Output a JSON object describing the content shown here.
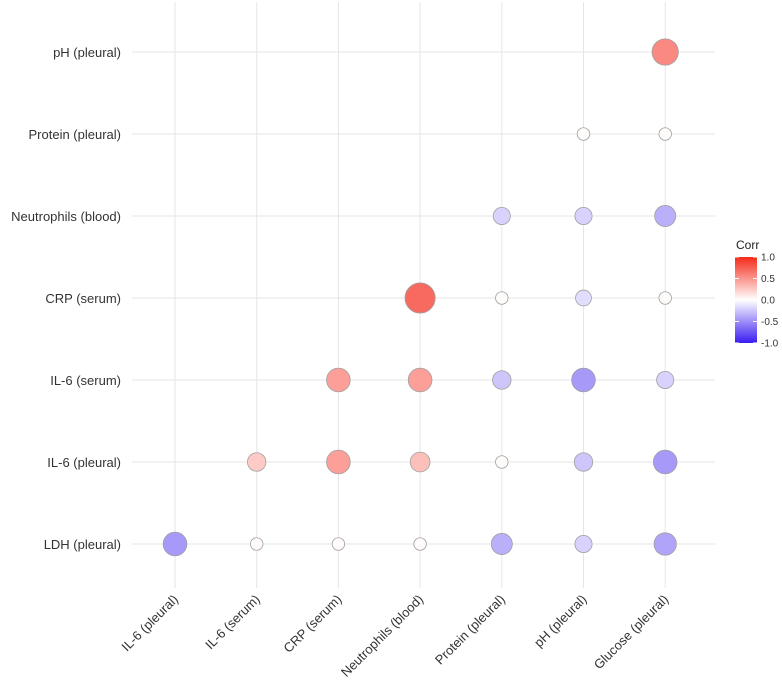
{
  "chart_data": {
    "type": "correlogram",
    "title": "",
    "xlabel": "",
    "ylabel": "",
    "x_categories": [
      "IL-6 (pleural)",
      "IL-6 (serum)",
      "CRP (serum)",
      "Neutrophils (blood)",
      "Protein (pleural)",
      "pH (pleural)",
      "Glucose (pleural)"
    ],
    "y_categories": [
      "pH (pleural)",
      "Protein (pleural)",
      "Neutrophils (blood)",
      "CRP (serum)",
      "IL-6 (serum)",
      "IL-6 (pleural)",
      "LDH (pleural)"
    ],
    "cells": [
      {
        "row": "pH (pleural)",
        "col": "Glucose (pleural)",
        "value": 0.55
      },
      {
        "row": "Protein (pleural)",
        "col": "pH (pleural)",
        "value": 0.02
      },
      {
        "row": "Protein (pleural)",
        "col": "Glucose (pleural)",
        "value": 0.02
      },
      {
        "row": "Neutrophils (blood)",
        "col": "Protein (pleural)",
        "value": -0.2
      },
      {
        "row": "Neutrophils (blood)",
        "col": "pH (pleural)",
        "value": -0.2
      },
      {
        "row": "Neutrophils (blood)",
        "col": "Glucose (pleural)",
        "value": -0.35
      },
      {
        "row": "CRP (serum)",
        "col": "Neutrophils (blood)",
        "value": 0.7
      },
      {
        "row": "CRP (serum)",
        "col": "Protein (pleural)",
        "value": 0.02
      },
      {
        "row": "CRP (serum)",
        "col": "pH (pleural)",
        "value": -0.15
      },
      {
        "row": "CRP (serum)",
        "col": "Glucose (pleural)",
        "value": 0.02
      },
      {
        "row": "IL-6 (serum)",
        "col": "CRP (serum)",
        "value": 0.45
      },
      {
        "row": "IL-6 (serum)",
        "col": "Neutrophils (blood)",
        "value": 0.45
      },
      {
        "row": "IL-6 (serum)",
        "col": "Protein (pleural)",
        "value": -0.25
      },
      {
        "row": "IL-6 (serum)",
        "col": "pH (pleural)",
        "value": -0.45
      },
      {
        "row": "IL-6 (serum)",
        "col": "Glucose (pleural)",
        "value": -0.2
      },
      {
        "row": "IL-6 (pleural)",
        "col": "IL-6 (serum)",
        "value": 0.25
      },
      {
        "row": "IL-6 (pleural)",
        "col": "CRP (serum)",
        "value": 0.45
      },
      {
        "row": "IL-6 (pleural)",
        "col": "Neutrophils (blood)",
        "value": 0.3
      },
      {
        "row": "IL-6 (pleural)",
        "col": "Protein (pleural)",
        "value": 0.02
      },
      {
        "row": "IL-6 (pleural)",
        "col": "pH (pleural)",
        "value": -0.25
      },
      {
        "row": "IL-6 (pleural)",
        "col": "Glucose (pleural)",
        "value": -0.45
      },
      {
        "row": "LDH (pleural)",
        "col": "IL-6 (pleural)",
        "value": -0.45
      },
      {
        "row": "LDH (pleural)",
        "col": "IL-6 (serum)",
        "value": 0.02
      },
      {
        "row": "LDH (pleural)",
        "col": "CRP (serum)",
        "value": 0.02
      },
      {
        "row": "LDH (pleural)",
        "col": "Neutrophils (blood)",
        "value": 0.02
      },
      {
        "row": "LDH (pleural)",
        "col": "Protein (pleural)",
        "value": -0.35
      },
      {
        "row": "LDH (pleural)",
        "col": "pH (pleural)",
        "value": -0.2
      },
      {
        "row": "LDH (pleural)",
        "col": "Glucose (pleural)",
        "value": -0.4
      }
    ],
    "legend": {
      "title": "Corr",
      "ticks": [
        "1.0",
        "0.5",
        "0.0",
        "-0.5",
        "-1.0"
      ],
      "tick_values": [
        1.0,
        0.5,
        0.0,
        -0.5,
        -1.0
      ],
      "range": [
        -1,
        1
      ],
      "placement": "right",
      "low_color": "#3a1cf0",
      "mid_color": "#ffffff",
      "high_color": "#f52a1a"
    },
    "grid": true,
    "grid_color": "#e6e6e6",
    "point_outline_color": "#a0a0a0"
  }
}
